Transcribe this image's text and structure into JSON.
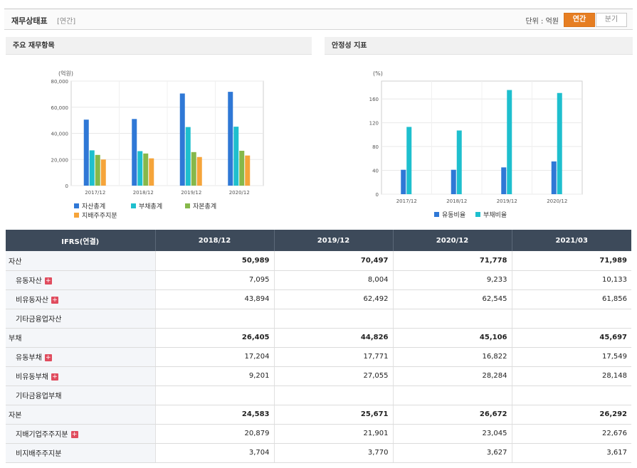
{
  "header": {
    "title": "재무상태표",
    "subtitle": "[연간]",
    "unit_label": "단위 : 억원",
    "tab_annual": "연간",
    "tab_quarter": "분기"
  },
  "colors": {
    "blue": "#2f78d6",
    "cyan": "#1ebfce",
    "green": "#86b84a",
    "orange": "#f5a43a",
    "accent": "#e67e22",
    "table_header": "#3d4a5a"
  },
  "chart_data": [
    {
      "type": "bar",
      "title": "주요 재무항목",
      "ylabel": "(억원)",
      "categories": [
        "2017/12",
        "2018/12",
        "2019/12",
        "2020/12"
      ],
      "ylim": [
        0,
        80000
      ],
      "yticks": [
        "80,000",
        "60,000",
        "40,000",
        "20,000",
        "0"
      ],
      "series": [
        {
          "name": "자산총계",
          "color": "#2f78d6",
          "values": [
            50500,
            50989,
            70497,
            71778
          ]
        },
        {
          "name": "부채총계",
          "color": "#1ebfce",
          "values": [
            27000,
            26405,
            44826,
            45106
          ]
        },
        {
          "name": "자본총계",
          "color": "#86b84a",
          "values": [
            23500,
            24583,
            25671,
            26672
          ]
        },
        {
          "name": "지배주주지분",
          "color": "#f5a43a",
          "values": [
            20000,
            20879,
            21901,
            23045
          ]
        }
      ],
      "legend_position": "bottom",
      "grid": true
    },
    {
      "type": "bar",
      "title": "안정성 지표",
      "ylabel": "(%)",
      "categories": [
        "2017/12",
        "2018/12",
        "2019/12",
        "2020/12"
      ],
      "ylim": [
        0,
        190
      ],
      "yticks": [
        "160",
        "120",
        "80",
        "40",
        "0"
      ],
      "series": [
        {
          "name": "유동비율",
          "color": "#2f78d6",
          "values": [
            41,
            41,
            45,
            55
          ]
        },
        {
          "name": "부채비율",
          "color": "#1ebfce",
          "values": [
            113,
            107,
            175,
            170
          ]
        }
      ],
      "legend_position": "bottom",
      "grid": true
    }
  ],
  "table": {
    "header_label": "IFRS(연결)",
    "columns": [
      "2018/12",
      "2019/12",
      "2020/12",
      "2021/03"
    ],
    "rows": [
      {
        "label": "자산",
        "values": [
          "50,989",
          "70,497",
          "71,778",
          "71,989"
        ],
        "bold": true,
        "indent": false,
        "expand": false
      },
      {
        "label": "유동자산",
        "values": [
          "7,095",
          "8,004",
          "9,233",
          "10,133"
        ],
        "bold": false,
        "indent": true,
        "expand": true
      },
      {
        "label": "비유동자산",
        "values": [
          "43,894",
          "62,492",
          "62,545",
          "61,856"
        ],
        "bold": false,
        "indent": true,
        "expand": true
      },
      {
        "label": "기타금융업자산",
        "values": [
          "",
          "",
          "",
          ""
        ],
        "bold": false,
        "indent": true,
        "expand": false
      },
      {
        "label": "부채",
        "values": [
          "26,405",
          "44,826",
          "45,106",
          "45,697"
        ],
        "bold": true,
        "indent": false,
        "expand": false
      },
      {
        "label": "유동부채",
        "values": [
          "17,204",
          "17,771",
          "16,822",
          "17,549"
        ],
        "bold": false,
        "indent": true,
        "expand": true
      },
      {
        "label": "비유동부채",
        "values": [
          "9,201",
          "27,055",
          "28,284",
          "28,148"
        ],
        "bold": false,
        "indent": true,
        "expand": true
      },
      {
        "label": "기타금융업부채",
        "values": [
          "",
          "",
          "",
          ""
        ],
        "bold": false,
        "indent": true,
        "expand": false
      },
      {
        "label": "자본",
        "values": [
          "24,583",
          "25,671",
          "26,672",
          "26,292"
        ],
        "bold": true,
        "indent": false,
        "expand": false
      },
      {
        "label": "지배기업주주지분",
        "values": [
          "20,879",
          "21,901",
          "23,045",
          "22,676"
        ],
        "bold": false,
        "indent": true,
        "expand": true
      },
      {
        "label": "비지배주주지분",
        "values": [
          "3,704",
          "3,770",
          "3,627",
          "3,617"
        ],
        "bold": false,
        "indent": true,
        "expand": false
      }
    ]
  },
  "icons": {
    "expand": "plus-icon"
  }
}
